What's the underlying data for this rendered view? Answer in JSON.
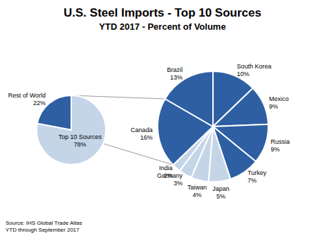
{
  "chart_data": [
    {
      "type": "pie",
      "title": "U.S. Steel Imports - Top 10 Sources",
      "subtitle": "YTD 2017 - Percent of Volume",
      "annotation": "Source: IHS Global Trade Atlas\nYTD through September 2017",
      "categories": [
        "Rest of World",
        "Top 10 Sources"
      ],
      "values": [
        22,
        78
      ],
      "value_labels": [
        "22%",
        "78%"
      ],
      "colors": [
        "#2E5FA3",
        "#C5D5E8"
      ],
      "data_labels": true
    },
    {
      "type": "pie",
      "categories": [
        "South Korea",
        "Mexico",
        "Russia",
        "Turkey",
        "Japan",
        "Taiwan",
        "Germany",
        "India",
        "Canada",
        "Brazil"
      ],
      "values": [
        10,
        9,
        9,
        7,
        5,
        4,
        3,
        2,
        16,
        13
      ],
      "value_labels": [
        "10%",
        "9%",
        "9%",
        "7%",
        "5%",
        "4%",
        "3%",
        "2%",
        "16%",
        "13%"
      ],
      "colors": [
        "#2E5FA3",
        "#2E5FA3",
        "#2E5FA3",
        "#2E5FA3",
        "#C5D5E8",
        "#C5D5E8",
        "#C5D5E8",
        "#C5D5E8",
        "#2E5FA3",
        "#2E5FA3"
      ],
      "data_labels": true
    }
  ]
}
